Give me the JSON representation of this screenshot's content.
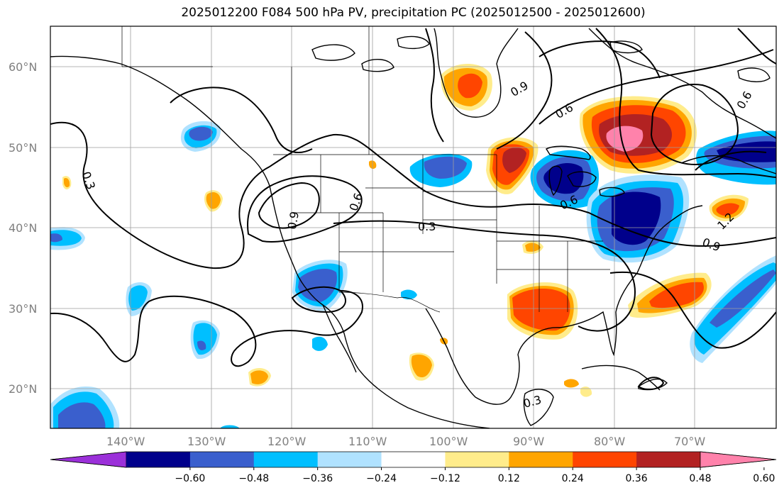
{
  "title": "2025012200 F084 500 hPa PV, precipitation PC (2025012500 - 2025012600)",
  "lat_labels": [
    "60°N",
    "50°N",
    "40°N",
    "30°N",
    "20°N"
  ],
  "lon_labels": [
    "140°W",
    "130°W",
    "120°W",
    "110°W",
    "100°W",
    "90°W",
    "80°W",
    "70°W"
  ],
  "colorbar": {
    "tick_labels": [
      "−0.60",
      "−0.48",
      "−0.36",
      "−0.24",
      "−0.12",
      "0.12",
      "0.24",
      "0.36",
      "0.48",
      "0.60"
    ],
    "colors": [
      "#9b30d9",
      "#00008b",
      "#3a5fcd",
      "#00bfff",
      "#b0e2ff",
      "#ffffff",
      "#ffec8b",
      "#ffa500",
      "#ff4500",
      "#b22222",
      "#ff82ab"
    ]
  },
  "contour_labels": [
    "0.3",
    "0.6",
    "0.9",
    "0.3",
    "0.6",
    "0.9",
    "0.6",
    "1.2",
    "0.3",
    "0.9",
    "0.6"
  ]
}
